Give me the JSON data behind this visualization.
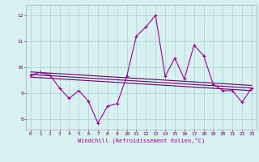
{
  "hours": [
    0,
    1,
    2,
    3,
    4,
    5,
    6,
    7,
    8,
    9,
    10,
    11,
    12,
    13,
    14,
    15,
    16,
    17,
    18,
    19,
    20,
    21,
    22,
    23
  ],
  "windchill": [
    9.7,
    9.8,
    9.7,
    9.2,
    8.8,
    9.1,
    8.7,
    7.85,
    8.5,
    8.6,
    9.65,
    11.2,
    11.55,
    12.0,
    9.65,
    10.35,
    9.55,
    10.85,
    10.45,
    9.35,
    9.1,
    9.1,
    8.65,
    9.2
  ],
  "reg_line1_y": [
    9.72,
    9.2
  ],
  "reg_line2_y": [
    9.62,
    9.1
  ],
  "reg_line3_y": [
    9.82,
    9.3
  ],
  "bg_color": "#d8f0f0",
  "grid_color": "#b0d8d8",
  "line_color": "#990099",
  "reg_color": "#660066",
  "xlabel": "Windchill (Refroidissement éolien,°C)",
  "xlim": [
    -0.5,
    23.5
  ],
  "ylim": [
    7.6,
    12.4
  ],
  "yticks": [
    8,
    9,
    10,
    11,
    12
  ],
  "xticks": [
    0,
    1,
    2,
    3,
    4,
    5,
    6,
    7,
    8,
    9,
    10,
    11,
    12,
    13,
    14,
    15,
    16,
    17,
    18,
    19,
    20,
    21,
    22,
    23
  ],
  "figsize": [
    3.2,
    2.0
  ],
  "dpi": 100
}
